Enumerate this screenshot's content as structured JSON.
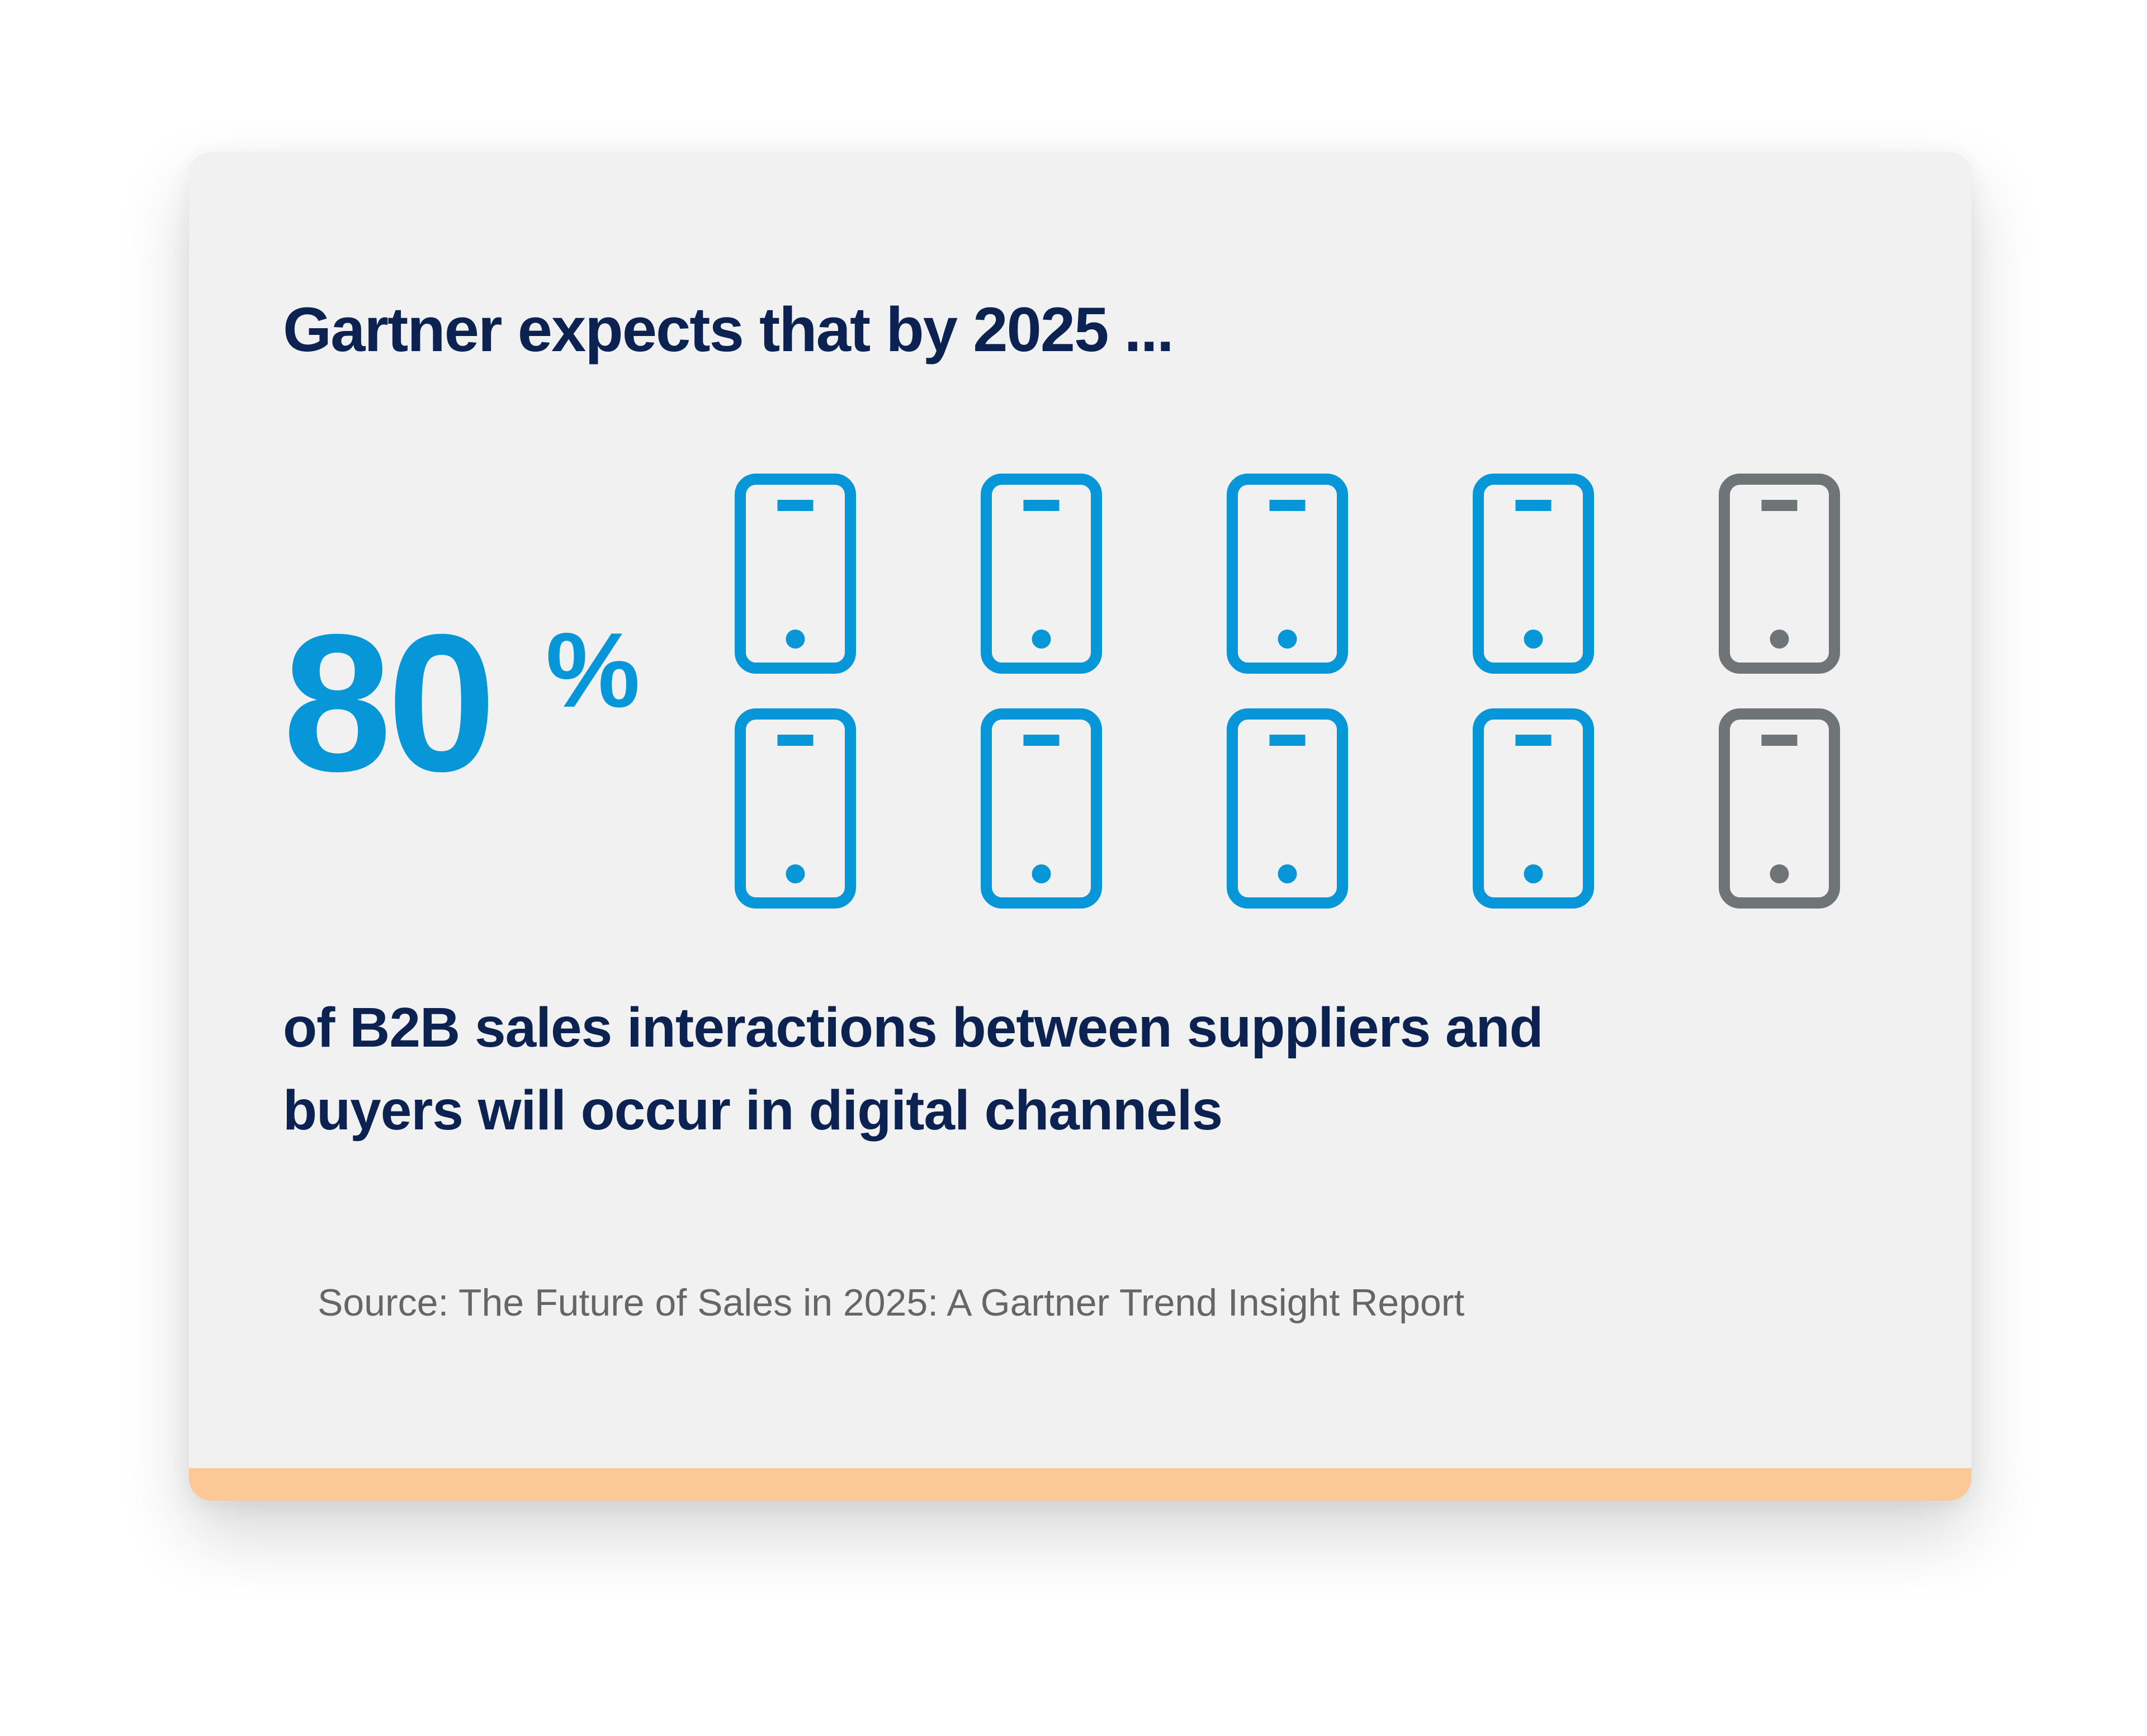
{
  "headline": "Gartner expects that by 2025 ...",
  "stat": {
    "value": 80,
    "unit": "%"
  },
  "description": [
    "of B2B sales interactions between suppliers and",
    "buyers will occur in digital channels"
  ],
  "source": "Source: The Future of Sales in 2025: A Gartner Trend Insight Report"
}
